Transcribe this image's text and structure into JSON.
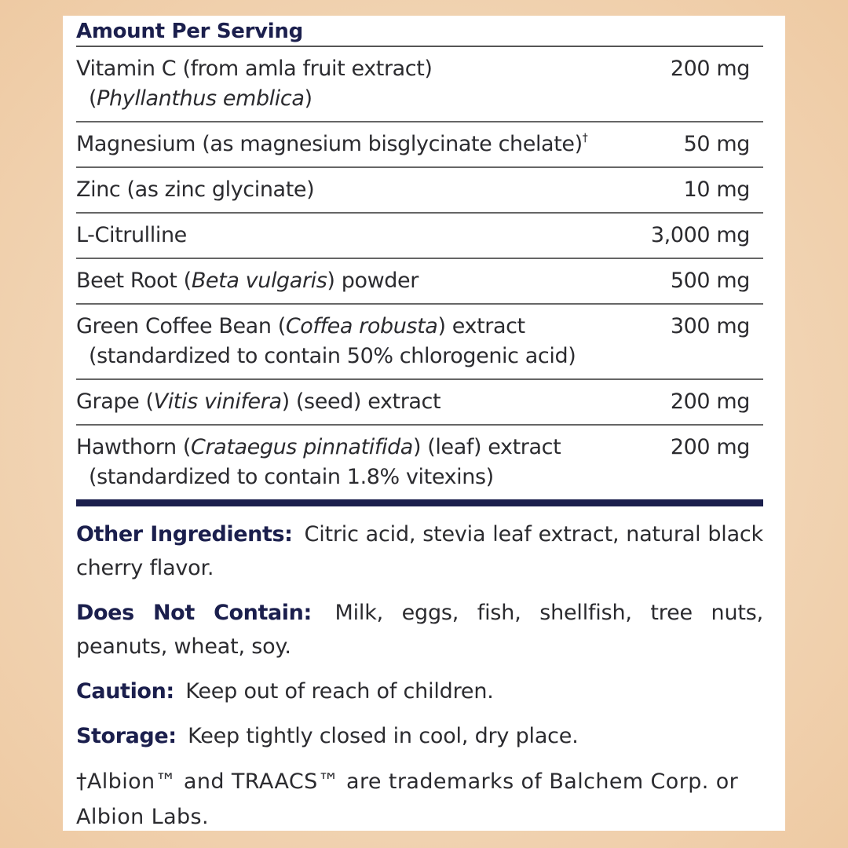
{
  "panel": {
    "header": "Amount Per Serving",
    "rows": [
      {
        "lines": [
          [
            {
              "text": "Vitamin C (from amla fruit extract)"
            }
          ],
          [
            {
              "text": "("
            },
            {
              "text": "Phyllanthus emblica",
              "italic": true
            },
            {
              "text": ")"
            }
          ]
        ],
        "amount": "200 mg"
      },
      {
        "lines": [
          [
            {
              "text": "Magnesium (as magnesium bisglycinate chelate)"
            },
            {
              "text": "†",
              "sup": true
            }
          ]
        ],
        "amount": "50 mg"
      },
      {
        "lines": [
          [
            {
              "text": "Zinc (as zinc glycinate)"
            }
          ]
        ],
        "amount": "10 mg"
      },
      {
        "lines": [
          [
            {
              "text": "L-Citrulline"
            }
          ]
        ],
        "amount": "3,000 mg"
      },
      {
        "lines": [
          [
            {
              "text": "Beet Root ("
            },
            {
              "text": "Beta vulgaris",
              "italic": true
            },
            {
              "text": ") powder"
            }
          ]
        ],
        "amount": "500 mg"
      },
      {
        "lines": [
          [
            {
              "text": "Green Coffee Bean ("
            },
            {
              "text": "Coffea robusta",
              "italic": true
            },
            {
              "text": ") extract"
            }
          ],
          [
            {
              "text": "(standardized to contain 50% chlorogenic acid)"
            }
          ]
        ],
        "amount": "300 mg"
      },
      {
        "lines": [
          [
            {
              "text": "Grape ("
            },
            {
              "text": "Vitis vinifera",
              "italic": true
            },
            {
              "text": ") (seed) extract"
            }
          ]
        ],
        "amount": "200 mg"
      },
      {
        "lines": [
          [
            {
              "text": "Hawthorn ("
            },
            {
              "text": "Crataegus pinnatifida",
              "italic": true
            },
            {
              "text": ") (leaf) extract"
            }
          ],
          [
            {
              "text": "(standardized to contain 1.8% vitexins)"
            }
          ]
        ],
        "amount": "200 mg"
      }
    ],
    "notes": [
      {
        "label": "Other Ingredients:",
        "text": "Citric acid, stevia leaf extract, natural black cherry flavor."
      },
      {
        "label": "Does Not Contain:",
        "text": "Milk, eggs, fish, shellfish, tree nuts, peanuts, wheat, soy."
      },
      {
        "label": "Caution:",
        "text": "Keep out of reach of children."
      },
      {
        "label": "Storage:",
        "text": "Keep tightly closed in cool, dry place."
      }
    ],
    "footnote": "†Albion™ and TRAACS™ are trademarks of Balchem Corp. or Albion Labs."
  }
}
